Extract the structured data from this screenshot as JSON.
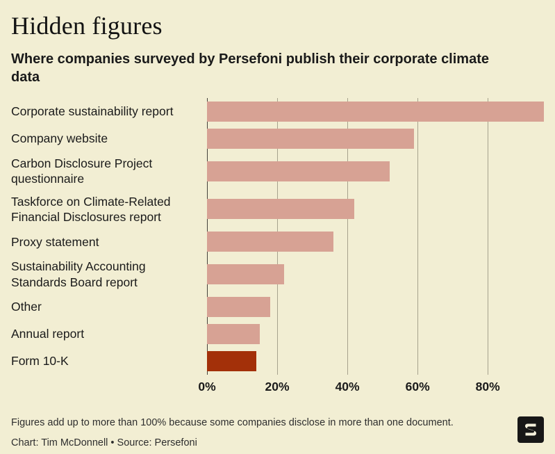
{
  "header": {
    "title": "Hidden figures",
    "subtitle": "Where companies surveyed by Persefoni publish their corporate climate data"
  },
  "chart_data": {
    "type": "bar",
    "orientation": "horizontal",
    "title": "Hidden figures",
    "subtitle": "Where companies surveyed by Persefoni publish their corporate climate data",
    "categories": [
      "Corporate sustainability report",
      "Company website",
      "Carbon Disclosure Project questionnaire",
      "Taskforce on Climate-Related Financial Disclosures report",
      "Proxy statement",
      "Sustainability Accounting Standards Board report",
      "Other",
      "Annual report",
      "Form 10-K"
    ],
    "values": [
      96,
      59,
      52,
      42,
      36,
      22,
      18,
      15,
      14
    ],
    "unit": "%",
    "xlim": [
      0,
      96
    ],
    "ticks": [
      0,
      20,
      40,
      60,
      80
    ],
    "tick_labels": [
      "0%",
      "20%",
      "40%",
      "60%",
      "80%"
    ],
    "grid": true,
    "bar_color": "#d7a294",
    "highlight_index": 8,
    "highlight_color": "#a33009"
  },
  "footer": {
    "note": "Figures add up to more than 100% because some companies disclose in more than one document.",
    "credit": "Chart: Tim McDonnell • Source: Persefoni",
    "logo": "semafor-logo"
  },
  "colors": {
    "background": "#f2eed3",
    "text": "#1a1a1a",
    "gridline": "#a7a28d",
    "zero_line": "#44413a",
    "bar": "#d7a294",
    "highlight_bar": "#a33009"
  }
}
